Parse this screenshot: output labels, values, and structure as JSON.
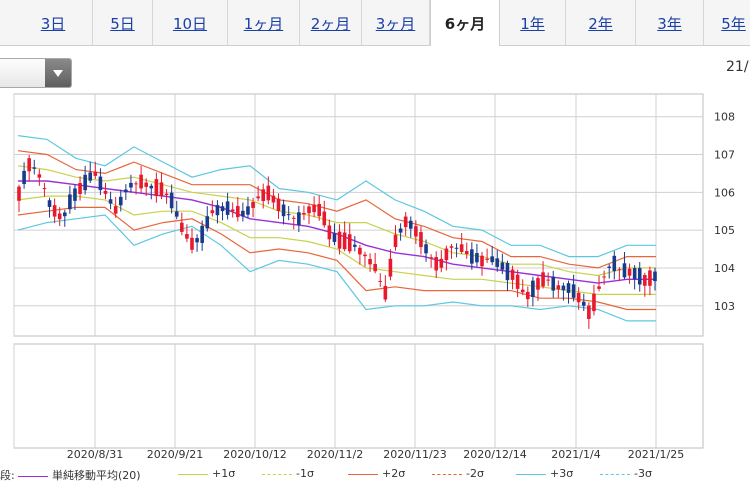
{
  "tabs": [
    {
      "label": "3日",
      "active": false
    },
    {
      "label": "5日",
      "active": false
    },
    {
      "label": "10日",
      "active": false
    },
    {
      "label": "1ヶ月",
      "active": false
    },
    {
      "label": "2ヶ月",
      "active": false
    },
    {
      "label": "3ヶ月",
      "active": false
    },
    {
      "label": "6ヶ月",
      "active": true
    },
    {
      "label": "1年",
      "active": false
    },
    {
      "label": "2年",
      "active": false
    },
    {
      "label": "3年",
      "active": false
    },
    {
      "label": "5年",
      "active": false
    }
  ],
  "date_cut": "21/",
  "legend_head": "段:",
  "colors": {
    "up": "#e8192c",
    "down": "#1a3a8c",
    "sma": "#9b30d9",
    "s1": "#c8d24a",
    "s2": "#e8663c",
    "s3": "#5cc8e0"
  },
  "chart_data": {
    "type": "candlestick",
    "ylim": [
      102.2,
      108.6
    ],
    "yticks": [
      103,
      104,
      105,
      106,
      107,
      108
    ],
    "x_labels": [
      "2020/8/31",
      "2020/9/21",
      "2020/10/12",
      "2020/11/2",
      "2020/11/23",
      "2020/12/14",
      "2021/1/4",
      "2021/1/25"
    ],
    "close_path": [
      106.0,
      106.8,
      106.4,
      105.6,
      105.3,
      105.9,
      106.2,
      106.5,
      106.0,
      105.5,
      106.1,
      106.3,
      106.2,
      106.1,
      105.9,
      105.1,
      104.6,
      104.9,
      105.5,
      105.6,
      105.5,
      105.4,
      105.8,
      106.0,
      105.7,
      105.4,
      105.3,
      105.6,
      105.5,
      104.8,
      104.7,
      104.6,
      104.4,
      104.0,
      103.3,
      104.8,
      105.3,
      104.9,
      104.4,
      104.0,
      104.6,
      104.5,
      104.3,
      104.2,
      104.2,
      104.0,
      103.8,
      103.2,
      103.6,
      103.7,
      103.5,
      103.5,
      103.2,
      102.8,
      103.6,
      104.2,
      103.9,
      103.9,
      103.7,
      103.8
    ],
    "series": [
      {
        "name": "単純移動平均(20)",
        "values": [
          106.3,
          106.3,
          106.2,
          106.1,
          106.0,
          105.9,
          105.8,
          105.6,
          105.3,
          105.2,
          105.1,
          104.9,
          104.6,
          104.4,
          104.3,
          104.1,
          104.0,
          103.9,
          103.8,
          103.7,
          103.6,
          103.7,
          103.7
        ]
      },
      {
        "name": "+1σ",
        "values": [
          106.7,
          106.6,
          106.4,
          106.3,
          106.4,
          106.2,
          106.0,
          105.9,
          105.8,
          105.5,
          105.4,
          105.2,
          105.2,
          104.9,
          104.7,
          104.4,
          104.3,
          104.1,
          104.1,
          103.9,
          103.8,
          104.0,
          104.0
        ]
      },
      {
        "name": "-1σ",
        "values": [
          105.8,
          105.9,
          105.9,
          105.8,
          105.4,
          105.5,
          105.5,
          105.2,
          104.8,
          104.8,
          104.7,
          104.5,
          104.0,
          103.9,
          103.8,
          103.7,
          103.7,
          103.6,
          103.5,
          103.4,
          103.3,
          103.3,
          103.3
        ]
      },
      {
        "name": "+2σ",
        "values": [
          107.1,
          107.0,
          106.6,
          106.5,
          106.8,
          106.5,
          106.2,
          106.2,
          106.2,
          105.8,
          105.7,
          105.5,
          105.8,
          105.3,
          105.1,
          104.8,
          104.7,
          104.3,
          104.3,
          104.1,
          104.0,
          104.3,
          104.3
        ]
      },
      {
        "name": "-2σ",
        "values": [
          105.4,
          105.5,
          105.6,
          105.6,
          105.0,
          105.2,
          105.3,
          104.9,
          104.4,
          104.5,
          104.4,
          104.2,
          103.4,
          103.5,
          103.4,
          103.4,
          103.4,
          103.4,
          103.2,
          103.2,
          103.1,
          102.9,
          102.9
        ]
      },
      {
        "name": "+3σ",
        "values": [
          107.5,
          107.4,
          106.9,
          106.7,
          107.2,
          106.8,
          106.4,
          106.6,
          106.7,
          106.1,
          106.0,
          105.8,
          106.3,
          105.8,
          105.5,
          105.1,
          105.0,
          104.6,
          104.6,
          104.3,
          104.3,
          104.6,
          104.6
        ]
      },
      {
        "name": "-3σ",
        "values": [
          105.0,
          105.2,
          105.3,
          105.4,
          104.6,
          104.9,
          105.1,
          104.6,
          103.9,
          104.2,
          104.1,
          103.9,
          102.9,
          103.0,
          103.0,
          103.1,
          103.0,
          103.0,
          102.9,
          103.0,
          102.9,
          102.6,
          102.6
        ]
      }
    ]
  }
}
